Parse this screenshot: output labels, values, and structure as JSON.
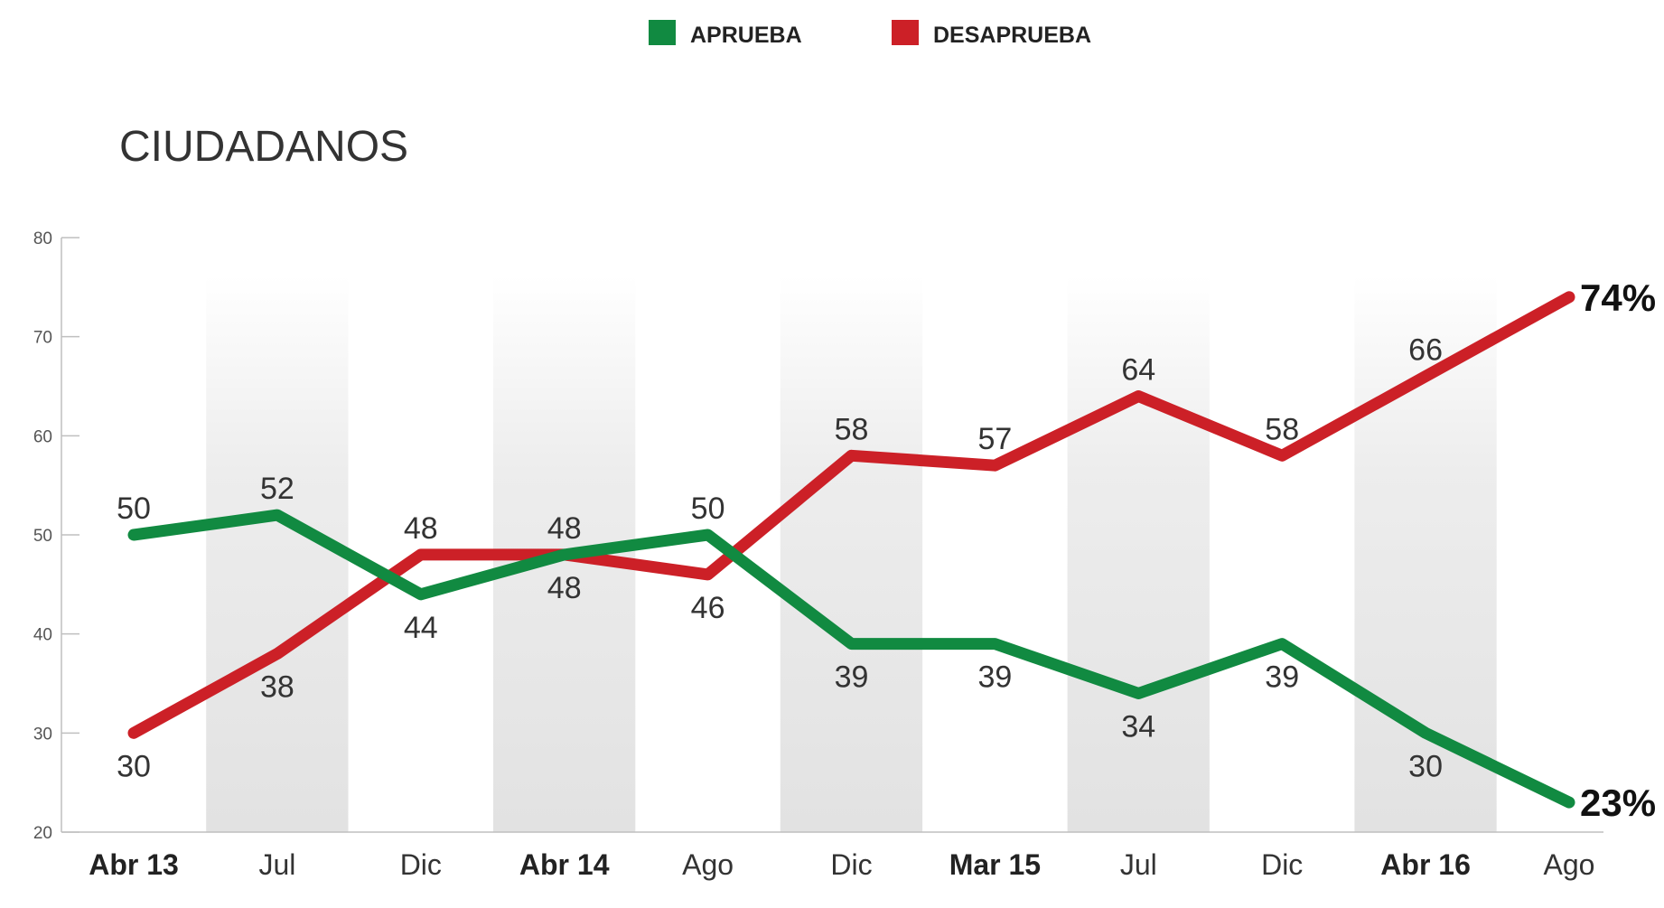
{
  "title": "CIUDADANOS",
  "legend": [
    {
      "label": "APRUEBA",
      "color": "#118a41"
    },
    {
      "label": "DESAPRUEBA",
      "color": "#cc2027"
    }
  ],
  "chart_data": {
    "type": "line",
    "title": "CIUDADANOS",
    "xlabel": "",
    "ylabel": "",
    "categories": [
      "Abr 13",
      "Jul",
      "Dic",
      "Abr 14",
      "Ago",
      "Dic",
      "Mar 15",
      "Jul",
      "Dic",
      "Abr 16",
      "Ago"
    ],
    "bold_categories": [
      "Abr 13",
      "Abr 14",
      "Mar 15",
      "Abr 16"
    ],
    "ylim": [
      20,
      80
    ],
    "yticks": [
      20,
      30,
      40,
      50,
      60,
      70,
      80
    ],
    "grid": false,
    "legend_position": "top-center",
    "series": [
      {
        "name": "APRUEBA",
        "color": "#118a41",
        "values": [
          50,
          52,
          44,
          48,
          50,
          39,
          39,
          34,
          39,
          30,
          23
        ],
        "labels": [
          "50",
          "52",
          "44",
          "48",
          "50",
          "39",
          "39",
          "34",
          "39",
          "30",
          "23%"
        ]
      },
      {
        "name": "DESAPRUEBA",
        "color": "#cc2027",
        "values": [
          30,
          38,
          48,
          48,
          46,
          58,
          57,
          64,
          58,
          66,
          74
        ],
        "labels": [
          "30",
          "38",
          "48",
          "48",
          "46",
          "58",
          "57",
          "64",
          "58",
          "66",
          "74%"
        ]
      }
    ]
  }
}
